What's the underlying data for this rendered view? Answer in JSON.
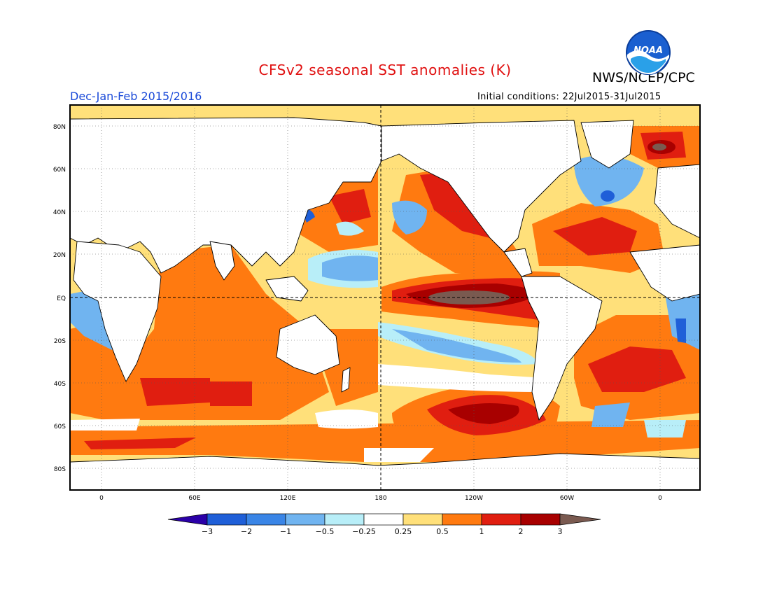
{
  "title": "CFSv2 seasonal SST anomalies (K)",
  "agency": "NWS/NCEP/CPC",
  "logo_text": "NOAA",
  "season": "Dec-Jan-Feb 2015/2016",
  "initial_conditions": "Initial conditions: 22Jul2015-31Jul2015",
  "lat_labels": [
    "80N",
    "60N",
    "40N",
    "20N",
    "EQ",
    "20S",
    "40S",
    "60S",
    "80S"
  ],
  "lon_labels": [
    "0",
    "60E",
    "120E",
    "180",
    "120W",
    "60W",
    "0"
  ],
  "colorbar": {
    "ticks": [
      "−3",
      "−2",
      "−1",
      "−0.5",
      "−0.25",
      "0.25",
      "0.5",
      "1",
      "2",
      "3"
    ],
    "colors": [
      "#2b00a8",
      "#1f5fd8",
      "#3a85e6",
      "#70b4f0",
      "#b8eef8",
      "#ffffff",
      "#ffe07a",
      "#ff7a10",
      "#e01e10",
      "#a80000",
      "#7a5a50"
    ]
  },
  "map": {
    "projection": "cylindrical equidistant",
    "lon_range": [
      -20,
      380
    ],
    "lat_range": [
      -90,
      90
    ],
    "gridlines": "dotted",
    "reference_lines": [
      "equator",
      "dateline"
    ],
    "land_color": "#ffffff",
    "coastline_color": "#000000"
  }
}
